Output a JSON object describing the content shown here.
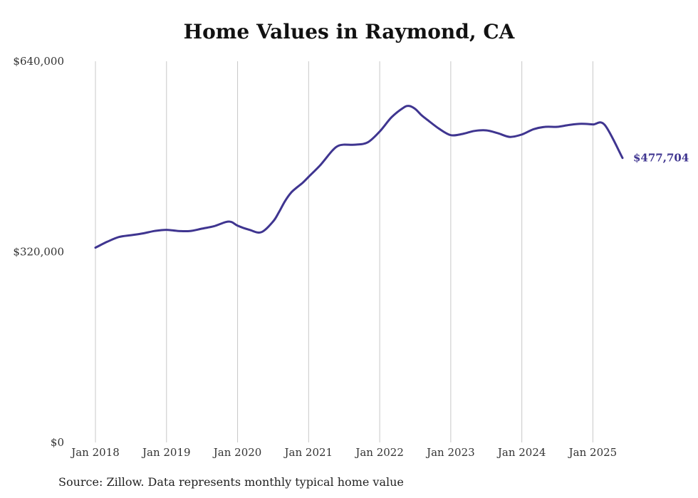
{
  "chart_data": {
    "type": "line",
    "title": "Home Values in Raymond, CA",
    "source": "Source: Zillow. Data represents monthly typical home value",
    "y_ticks": [
      "$0",
      "$320,000",
      "$640,000"
    ],
    "ylim": [
      0,
      640000
    ],
    "x_ticks": [
      "Jan 2018",
      "Jan 2019",
      "Jan 2020",
      "Jan 2021",
      "Jan 2022",
      "Jan 2023",
      "Jan 2024",
      "Jan 2025"
    ],
    "xlim": [
      "2018-01",
      "2025-06"
    ],
    "grid": "vertical",
    "line_color": "#3f3590",
    "end_label": "$477,704",
    "series": [
      {
        "x": [
          "2018-01",
          "2018-03",
          "2018-05",
          "2018-07",
          "2018-09",
          "2018-11",
          "2019-01",
          "2019-03",
          "2019-05",
          "2019-07",
          "2019-09",
          "2019-11",
          "2019-12",
          "2020-01",
          "2020-03",
          "2020-05",
          "2020-07",
          "2020-08",
          "2020-09",
          "2020-10",
          "2020-11",
          "2020-12",
          "2021-01",
          "2021-03",
          "2021-05",
          "2021-06",
          "2021-07",
          "2021-09",
          "2021-11",
          "2022-01",
          "2022-03",
          "2022-05",
          "2022-06",
          "2022-07",
          "2022-08",
          "2022-09",
          "2022-11",
          "2023-01",
          "2023-03",
          "2023-05",
          "2023-07",
          "2023-09",
          "2023-11",
          "2024-01",
          "2024-03",
          "2024-05",
          "2024-07",
          "2024-09",
          "2024-11",
          "2025-01",
          "2025-03",
          "2025-06"
        ],
        "values": [
          327000,
          337000,
          345000,
          348000,
          351000,
          355000,
          357000,
          355000,
          355000,
          359000,
          363000,
          370000,
          370000,
          364000,
          357000,
          353000,
          371000,
          387000,
          405000,
          419000,
          428000,
          436000,
          446000,
          466000,
          490000,
          498000,
          500000,
          500000,
          504000,
          522000,
          546000,
          562000,
          565000,
          560000,
          550000,
          542000,
          527000,
          516000,
          518000,
          523000,
          524000,
          519000,
          513000,
          517000,
          526000,
          530000,
          530000,
          533000,
          535000,
          534000,
          533000,
          477704
        ]
      }
    ]
  }
}
